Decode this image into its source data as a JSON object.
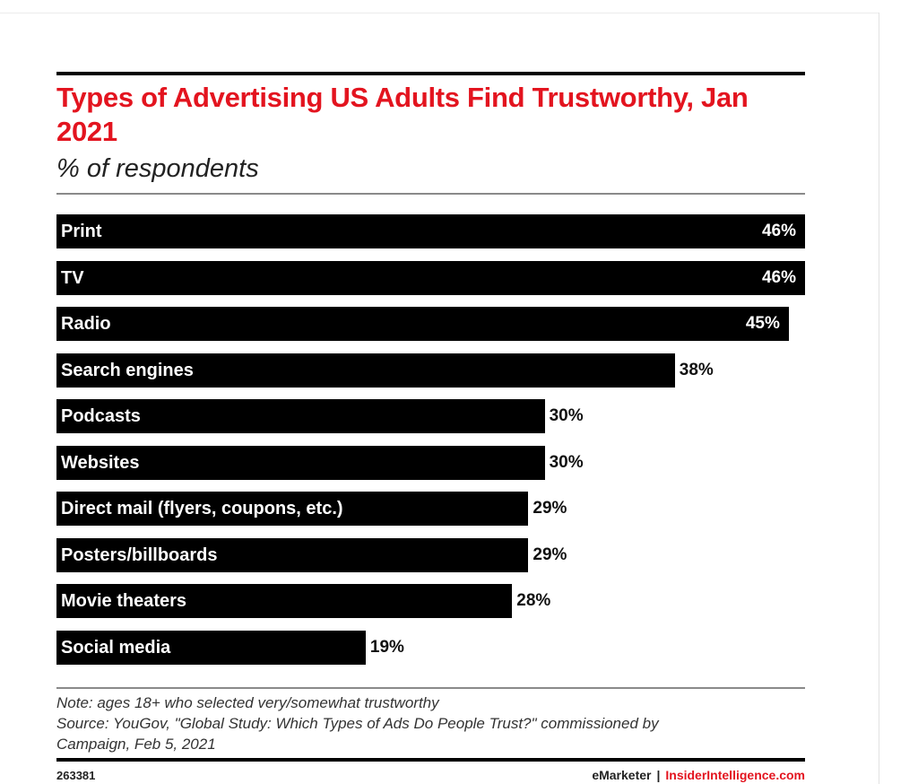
{
  "chart_data": {
    "type": "bar",
    "orientation": "horizontal",
    "title": "Types of Advertising US Adults Find Trustworthy, Jan 2021",
    "subtitle": "% of respondents",
    "categories": [
      "Print",
      "TV",
      "Radio",
      "Search engines",
      "Podcasts",
      "Websites",
      "Direct mail (flyers, coupons, etc.)",
      "Posters/billboards",
      "Movie theaters",
      "Social media"
    ],
    "values": [
      46,
      46,
      45,
      38,
      30,
      30,
      29,
      29,
      28,
      19
    ],
    "value_labels": [
      "46%",
      "46%",
      "45%",
      "38%",
      "30%",
      "30%",
      "29%",
      "29%",
      "28%",
      "19%"
    ],
    "xlim": [
      0,
      46
    ],
    "bar_color": "#000000",
    "title_color": "#e3141f"
  },
  "notes": {
    "note": "Note: ages 18+ who selected very/somewhat trustworthy",
    "source_line1": "Source: YouGov, \"Global Study: Which Types of Ads Do People Trust?\" commissioned by",
    "source_line2": "Campaign, Feb 5, 2021"
  },
  "footer": {
    "chart_id": "263381",
    "brand": "eMarketer",
    "separator": "|",
    "site": "InsiderIntelligence.com"
  }
}
